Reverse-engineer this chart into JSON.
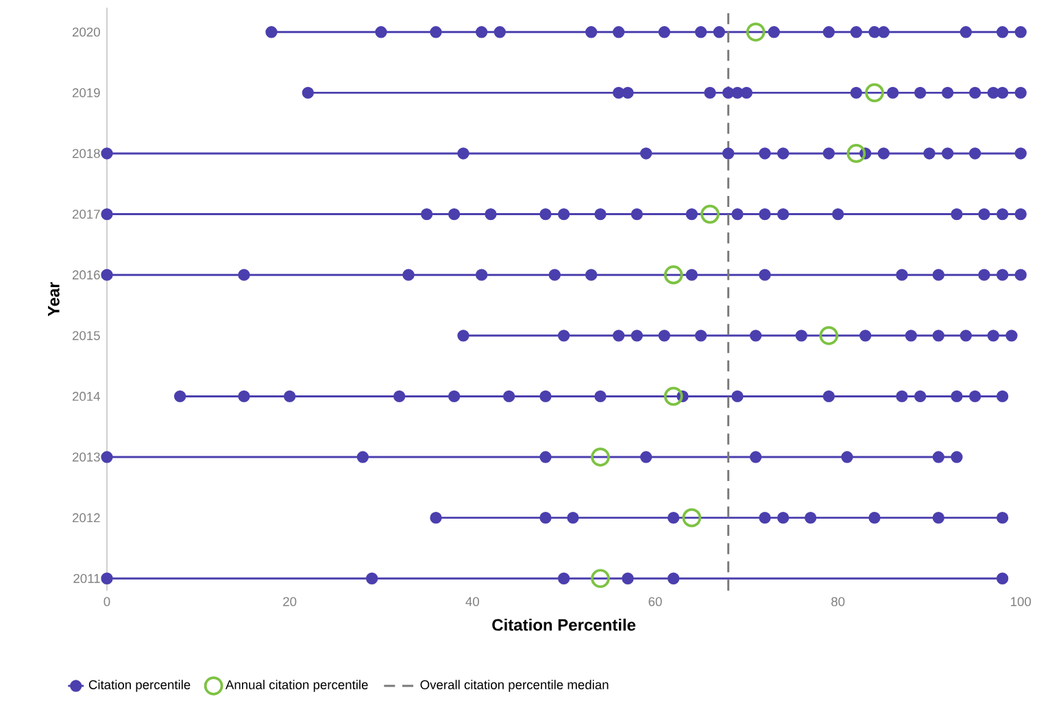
{
  "chart_data": {
    "type": "scatter",
    "xlabel": "Citation Percentile",
    "ylabel": "Year",
    "xlim": [
      0,
      100
    ],
    "xticks": [
      0,
      20,
      40,
      60,
      80,
      100
    ],
    "ylim": [
      2010.8,
      2020.4
    ],
    "yticks": [
      2011,
      2012,
      2013,
      2014,
      2015,
      2016,
      2017,
      2018,
      2019,
      2020
    ],
    "marker": "circle",
    "legend": "bottom left",
    "series": [
      {
        "name": "Citation percentile",
        "type": "line",
        "color": "#4b3fae",
        "x": [
          18,
          30,
          36,
          41,
          43,
          53,
          56,
          61,
          65,
          67,
          73,
          79,
          82,
          84,
          85,
          94,
          98,
          100
        ],
        "values": [
          2020,
          2020,
          2020,
          2020,
          2020,
          2020,
          2020,
          2020,
          2020,
          2020,
          2020,
          2020,
          2020,
          2020,
          2020,
          2020,
          2020,
          2020
        ]
      },
      {
        "type": "line",
        "color": "#4b3fae",
        "x": [
          22,
          56,
          57,
          66,
          68,
          69,
          70,
          82,
          86,
          89,
          92,
          95,
          97,
          98,
          100
        ],
        "values": [
          2019,
          2019,
          2019,
          2019,
          2019,
          2019,
          2019,
          2019,
          2019,
          2019,
          2019,
          2019,
          2019,
          2019,
          2019
        ]
      },
      {
        "type": "line",
        "color": "#4b3fae",
        "x": [
          0,
          39,
          59,
          68,
          72,
          74,
          79,
          83,
          85,
          90,
          92,
          95,
          100
        ],
        "values": [
          2018,
          2018,
          2018,
          2018,
          2018,
          2018,
          2018,
          2018,
          2018,
          2018,
          2018,
          2018,
          2018
        ]
      },
      {
        "type": "line",
        "color": "#4b3fae",
        "x": [
          0,
          35,
          38,
          42,
          48,
          50,
          54,
          58,
          64,
          69,
          72,
          74,
          80,
          93,
          96,
          98,
          100
        ],
        "values": [
          2017,
          2017,
          2017,
          2017,
          2017,
          2017,
          2017,
          2017,
          2017,
          2017,
          2017,
          2017,
          2017,
          2017,
          2017,
          2017,
          2017
        ]
      },
      {
        "type": "line",
        "color": "#4b3fae",
        "x": [
          0,
          15,
          33,
          41,
          49,
          53,
          64,
          72,
          87,
          91,
          96,
          98,
          100
        ],
        "values": [
          2016,
          2016,
          2016,
          2016,
          2016,
          2016,
          2016,
          2016,
          2016,
          2016,
          2016,
          2016,
          2016
        ]
      },
      {
        "type": "line",
        "color": "#4b3fae",
        "x": [
          39,
          50,
          56,
          58,
          61,
          65,
          71,
          76,
          83,
          88,
          91,
          94,
          97,
          99
        ],
        "values": [
          2015,
          2015,
          2015,
          2015,
          2015,
          2015,
          2015,
          2015,
          2015,
          2015,
          2015,
          2015,
          2015,
          2015
        ]
      },
      {
        "type": "line",
        "color": "#4b3fae",
        "x": [
          8,
          15,
          20,
          32,
          38,
          44,
          48,
          54,
          63,
          69,
          79,
          87,
          89,
          93,
          95,
          98
        ],
        "values": [
          2014,
          2014,
          2014,
          2014,
          2014,
          2014,
          2014,
          2014,
          2014,
          2014,
          2014,
          2014,
          2014,
          2014,
          2014,
          2014
        ]
      },
      {
        "type": "line",
        "color": "#4b3fae",
        "x": [
          0,
          28,
          48,
          59,
          71,
          81,
          91,
          93
        ],
        "values": [
          2013,
          2013,
          2013,
          2013,
          2013,
          2013,
          2013,
          2013
        ]
      },
      {
        "type": "line",
        "color": "#4b3fae",
        "x": [
          36,
          48,
          51,
          62,
          72,
          74,
          77,
          84,
          91,
          98
        ],
        "values": [
          2012,
          2012,
          2012,
          2012,
          2012,
          2012,
          2012,
          2012,
          2012,
          2012
        ]
      },
      {
        "type": "line",
        "color": "#4b3fae",
        "x": [
          0,
          29,
          50,
          57,
          62,
          98
        ],
        "values": [
          2011,
          2011,
          2011,
          2011,
          2011,
          2011
        ]
      },
      {
        "name": "Annual citation percentile",
        "color": "#7dc242",
        "x": [
          71,
          84,
          82,
          66,
          62,
          79,
          62,
          54,
          64,
          54
        ],
        "values": [
          2020,
          2019,
          2018,
          2017,
          2016,
          2015,
          2014,
          2013,
          2012,
          2011
        ]
      }
    ],
    "ref_lines": [
      {
        "axis": "x",
        "value": 68,
        "label": "Overall citation percentile median",
        "color": "#7a7a7a",
        "line_style": "dashed"
      }
    ]
  }
}
